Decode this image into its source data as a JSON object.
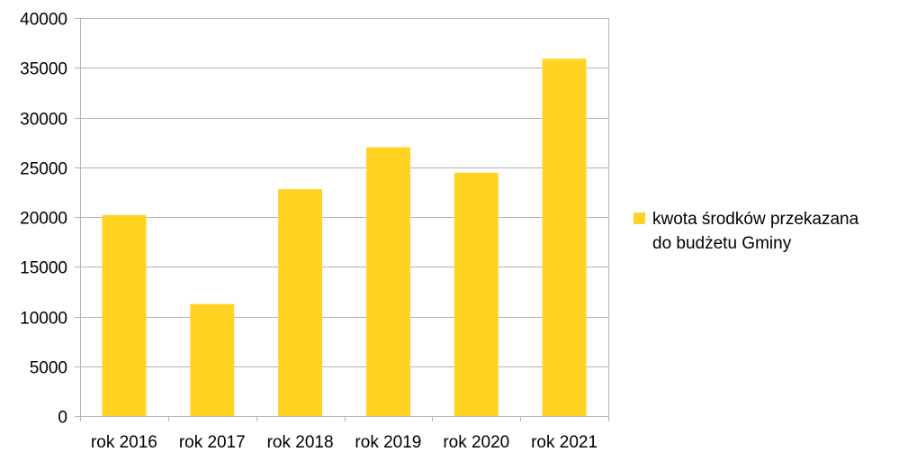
{
  "chart_data": {
    "type": "bar",
    "categories": [
      "rok 2016",
      "rok 2017",
      "rok 2018",
      "rok 2019",
      "rok 2020",
      "rok 2021"
    ],
    "series": [
      {
        "name": "kwota środków przekazana do budżetu Gminy",
        "name_lines": [
          "kwota środków przekazana",
          "do budżetu Gminy"
        ],
        "values": [
          20200,
          11250,
          22800,
          27000,
          24450,
          35900
        ],
        "color": "#ffd320"
      }
    ],
    "title": "",
    "xlabel": "",
    "ylabel": "",
    "ylim": [
      0,
      40000
    ],
    "yticks": [
      "0",
      "5000",
      "10000",
      "15000",
      "20000",
      "25000",
      "30000",
      "35000",
      "40000"
    ],
    "grid": true,
    "legend_position": "right",
    "colors": {
      "bar": "#ffd320",
      "grid": "#b3b3b3",
      "axis": "#b3b3b3"
    }
  }
}
